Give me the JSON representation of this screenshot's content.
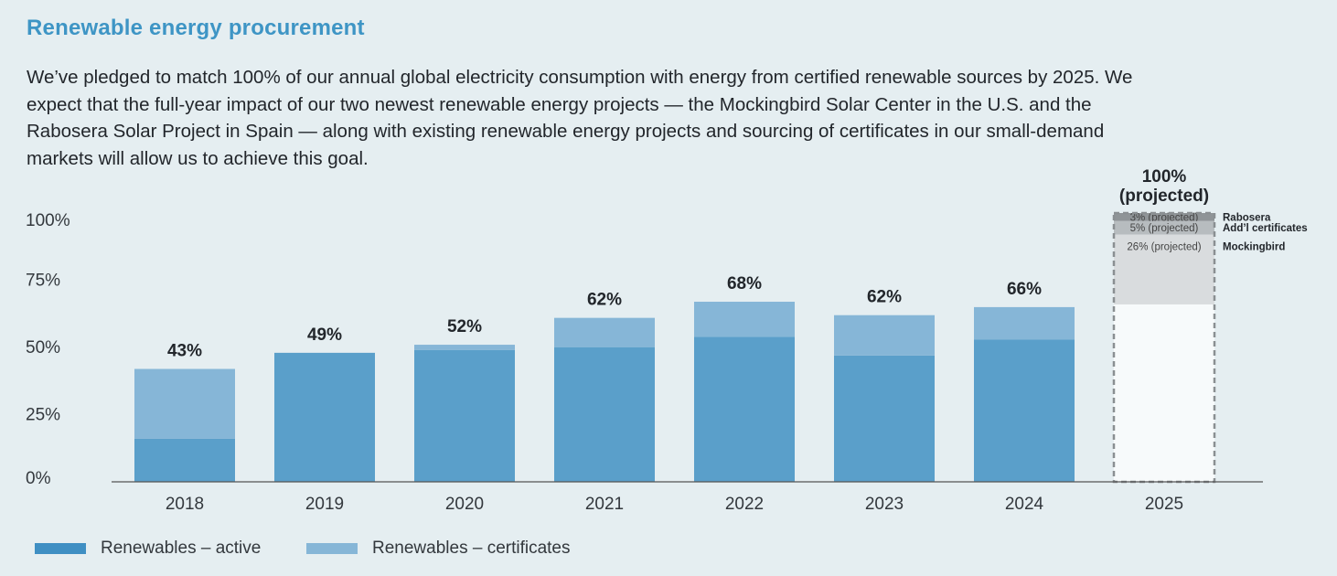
{
  "title": "Renewable energy procurement",
  "intro": "We’ve pledged to match 100% of our annual global electricity consumption with energy from certified renewable sources by 2025. We expect that the full-year impact of our two newest renewable energy projects — the Mockingbird Solar Center in the U.S. and the Rabosera Solar Project in Spain — along with existing renewable energy projects and sourcing of certificates in our small-demand markets will allow us to achieve this goal.",
  "colors": {
    "active": "#5a9fca",
    "certificates": "#86b6d7",
    "rabosera": "#8f9497",
    "addl": "#b7bcbf",
    "mockingbird": "#d9dcde",
    "projected_fill": "#f7fafb",
    "projected_border": "#8a8f92"
  },
  "chart_data": {
    "type": "bar",
    "stacked": true,
    "categories": [
      "2018",
      "2019",
      "2020",
      "2021",
      "2022",
      "2023",
      "2024",
      "2025"
    ],
    "series": [
      {
        "name": "Renewables – active",
        "values": [
          16,
          48,
          49,
          50,
          54,
          47,
          53,
          null
        ]
      },
      {
        "name": "Renewables – certificates",
        "values": [
          26,
          0,
          2,
          11,
          13,
          15,
          12,
          null
        ]
      }
    ],
    "totals": [
      "43%",
      "49%",
      "52%",
      "62%",
      "68%",
      "62%",
      "66%"
    ],
    "projected": {
      "category": "2025",
      "label_line1": "100%",
      "label_line2": "(projected)",
      "segments": [
        {
          "name": "Rabosera",
          "value": 3,
          "label": "3% (projected)"
        },
        {
          "name": "Add’l certificates",
          "value": 5,
          "label": "5% (projected)"
        },
        {
          "name": "Mockingbird",
          "value": 26,
          "label": "26% (projected)"
        }
      ],
      "total": 100
    },
    "yticks": [
      "0%",
      "25%",
      "50%",
      "75%",
      "100%"
    ],
    "ylim": [
      0,
      100
    ],
    "legend": [
      "Renewables – active",
      "Renewables – certificates"
    ],
    "legend_position": "bottom-left",
    "grid": false
  }
}
